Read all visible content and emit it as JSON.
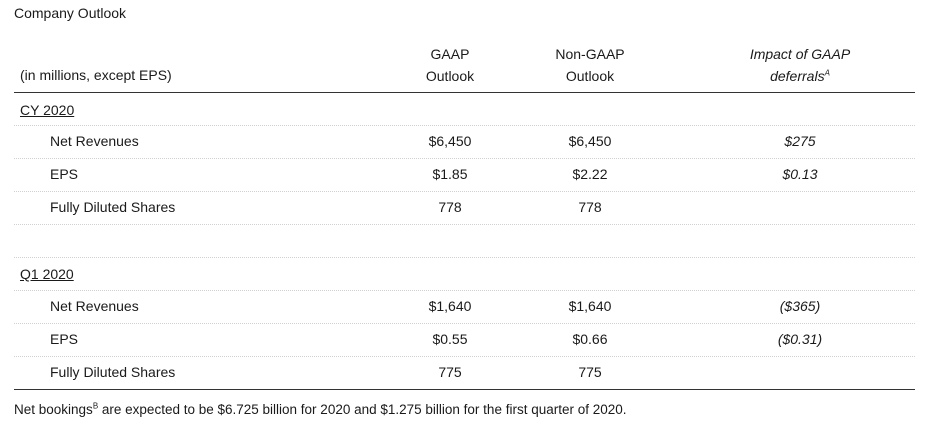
{
  "title": "Company Outlook",
  "header": {
    "units": "(in millions, except EPS)",
    "col1_line1": "GAAP",
    "col1_line2": "Outlook",
    "col2_line1": "Non-GAAP",
    "col2_line2": "Outlook",
    "col3_line1": "Impact of GAAP",
    "col3_line2": "deferrals",
    "col3_sup": "A"
  },
  "sections": [
    {
      "label": "CY 2020",
      "rows": [
        {
          "label": "Net Revenues",
          "gaap": "$6,450",
          "nongaap": "$6,450",
          "impact": "$275"
        },
        {
          "label": "EPS",
          "gaap": "$1.85",
          "nongaap": "$2.22",
          "impact": "$0.13"
        },
        {
          "label": "Fully Diluted Shares",
          "gaap": "778",
          "nongaap": "778",
          "impact": ""
        }
      ]
    },
    {
      "label": "Q1 2020",
      "rows": [
        {
          "label": "Net Revenues",
          "gaap": "$1,640",
          "nongaap": "$1,640",
          "impact": "($365)"
        },
        {
          "label": "EPS",
          "gaap": "$0.55",
          "nongaap": "$0.66",
          "impact": "($0.31)"
        },
        {
          "label": "Fully Diluted Shares",
          "gaap": "775",
          "nongaap": "775",
          "impact": ""
        }
      ]
    }
  ],
  "footnote": {
    "before": "Net bookings",
    "sup": "B",
    "after": " are expected to be $6.725 billion for 2020 and $1.275 billion for the first quarter of 2020."
  }
}
